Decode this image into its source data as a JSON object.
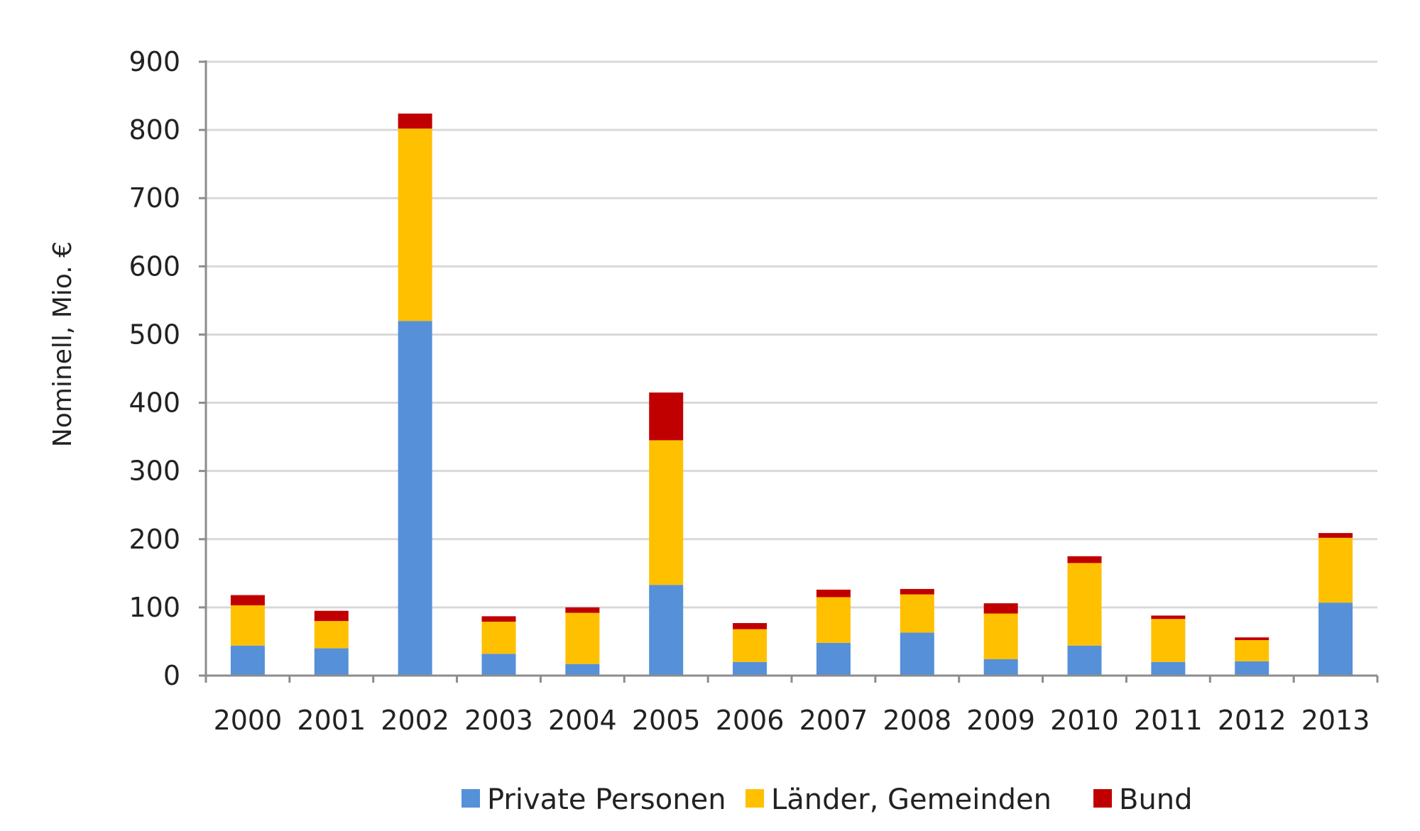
{
  "chart_data": {
    "type": "bar",
    "stacked": true,
    "title": "",
    "xlabel": "",
    "ylabel": "Nominell, Mio. €",
    "ylim": [
      0,
      900
    ],
    "yticks": [
      0,
      100,
      200,
      300,
      400,
      500,
      600,
      700,
      800,
      900
    ],
    "grid": true,
    "legend_position": "bottom",
    "categories": [
      "2000",
      "2001",
      "2002",
      "2003",
      "2004",
      "2005",
      "2006",
      "2007",
      "2008",
      "2009",
      "2010",
      "2011",
      "2012",
      "2013"
    ],
    "series": [
      {
        "name": "Private Personen",
        "color": "#5590D9",
        "values": [
          44,
          40,
          520,
          32,
          17,
          133,
          20,
          48,
          63,
          24,
          44,
          20,
          21,
          107
        ]
      },
      {
        "name": "Länder, Gemeinden",
        "color": "#FFC000",
        "values": [
          59,
          40,
          282,
          47,
          75,
          212,
          48,
          67,
          56,
          67,
          121,
          63,
          31,
          95
        ]
      },
      {
        "name": "Bund",
        "color": "#C00000",
        "values": [
          15,
          15,
          22,
          8,
          8,
          70,
          9,
          11,
          8,
          15,
          10,
          5,
          4,
          7
        ]
      }
    ]
  }
}
